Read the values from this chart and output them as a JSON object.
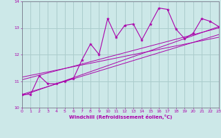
{
  "xlabel": "Windchill (Refroidissement éolien,°C)",
  "x": [
    0,
    1,
    2,
    3,
    4,
    5,
    6,
    7,
    8,
    9,
    10,
    11,
    12,
    13,
    14,
    15,
    16,
    17,
    18,
    19,
    20,
    21,
    22,
    23
  ],
  "y": [
    10.5,
    10.5,
    11.2,
    10.9,
    10.9,
    11.0,
    11.1,
    11.8,
    12.4,
    12.0,
    13.35,
    12.65,
    13.1,
    13.15,
    12.55,
    13.15,
    13.75,
    13.7,
    12.95,
    12.6,
    12.8,
    13.35,
    13.25,
    13.05
  ],
  "line_color": "#aa00aa",
  "bg_color": "#cce8e8",
  "grid_color": "#aacccc",
  "axis_color": "#777788",
  "text_color": "#aa00aa",
  "ylim": [
    10,
    14
  ],
  "xlim": [
    0,
    23
  ],
  "yticks": [
    10,
    11,
    12,
    13,
    14
  ],
  "xticks": [
    0,
    1,
    2,
    3,
    4,
    5,
    6,
    7,
    8,
    9,
    10,
    11,
    12,
    13,
    14,
    15,
    16,
    17,
    18,
    19,
    20,
    21,
    22,
    23
  ],
  "regression_lines": [
    {
      "x0": 0,
      "y0": 10.45,
      "x1": 23,
      "y1": 13.05
    },
    {
      "x0": 0,
      "y0": 10.5,
      "x1": 23,
      "y1": 12.75
    },
    {
      "x0": 0,
      "y0": 11.05,
      "x1": 23,
      "y1": 13.0
    },
    {
      "x0": 0,
      "y0": 11.15,
      "x1": 23,
      "y1": 12.65
    }
  ]
}
